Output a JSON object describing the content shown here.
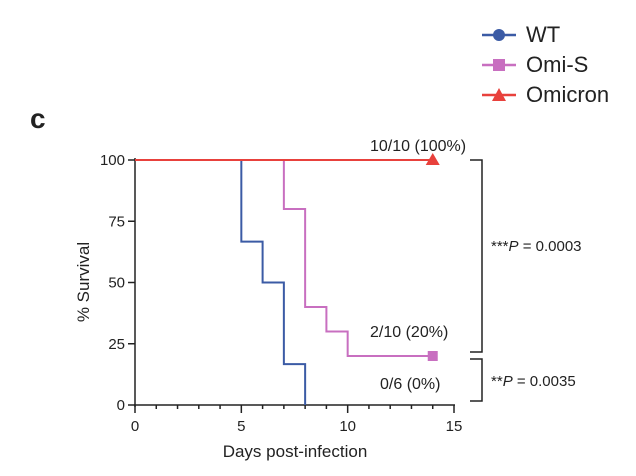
{
  "panel_label": "c",
  "legend": [
    {
      "label": "WT",
      "color": "#3b5ba5",
      "marker": "circle"
    },
    {
      "label": "Omi-S",
      "color": "#c86fc0",
      "marker": "square"
    },
    {
      "label": "Omicron",
      "color": "#e8413c",
      "marker": "triangle"
    }
  ],
  "annotations": {
    "omicron_end": "10/10 (100%)",
    "omis_end": "2/10 (20%)",
    "wt_end": "0/6 (0%)"
  },
  "pvalues": {
    "upper_stars": "***",
    "upper_p": "P",
    "upper_value": " = 0.0003",
    "lower_stars": "**",
    "lower_p": "P",
    "lower_value": " = 0.0035"
  },
  "chart_data": {
    "type": "line",
    "step": true,
    "xlabel": "Days post-infection",
    "ylabel": "% Survival",
    "xlim": [
      0,
      15
    ],
    "ylim": [
      0,
      100
    ],
    "x_ticks": [
      0,
      5,
      10,
      15
    ],
    "y_ticks": [
      0,
      25,
      50,
      75,
      100
    ],
    "series": [
      {
        "name": "WT",
        "color": "#3b5ba5",
        "x": [
          0,
          5,
          6,
          7,
          8
        ],
        "y": [
          100,
          66.7,
          50,
          16.7,
          0
        ]
      },
      {
        "name": "Omi-S",
        "color": "#c86fc0",
        "x": [
          0,
          7,
          8,
          9,
          10,
          14
        ],
        "y": [
          100,
          80,
          40,
          30,
          20,
          20
        ]
      },
      {
        "name": "Omicron",
        "color": "#e8413c",
        "x": [
          0,
          14
        ],
        "y": [
          100,
          100
        ]
      }
    ]
  }
}
